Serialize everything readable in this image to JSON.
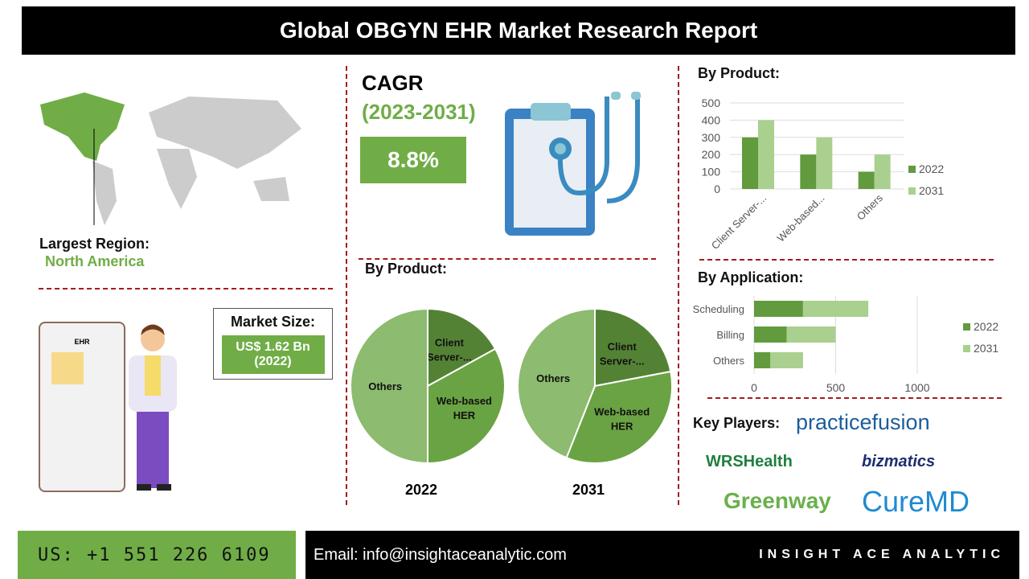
{
  "title": "Global OBGYN EHR Market Research Report",
  "region": {
    "label": "Largest Region:",
    "value": "North America"
  },
  "market_size": {
    "label": "Market Size:",
    "value": "US$ 1.62 Bn",
    "year": "(2022)"
  },
  "cagr": {
    "label": "CAGR",
    "period": "(2023-2031)",
    "value": "8.8%"
  },
  "ehr_label": "EHR",
  "pie_heading": "By Product:",
  "product_heading": "By Product:",
  "application_heading": "By Application:",
  "key_players_label": "Key Players:",
  "key_players": [
    "practicefusion",
    "WRSHealth",
    "bizmatics",
    "Greenway",
    "CureMD"
  ],
  "footer": {
    "phone": "US: +1 551 226 6109",
    "email": "Email: info@insightaceanalytic.com",
    "brand": "INSIGHT ACE ANALYTIC"
  },
  "colors": {
    "c2022": "#629a3e",
    "c2031": "#a9d08e",
    "accent": "#70ad47",
    "divider": "#a51c1c"
  },
  "chart_data": [
    {
      "type": "pie",
      "title": "2022",
      "categories": [
        "Client Server-...",
        "Web-based HER",
        "Others"
      ],
      "values": [
        17,
        33,
        50
      ],
      "colors": [
        "#548235",
        "#6aa343",
        "#8dbb6f"
      ]
    },
    {
      "type": "pie",
      "title": "2031",
      "categories": [
        "Client Server-...",
        "Web-based HER",
        "Others"
      ],
      "values": [
        22,
        34,
        44
      ],
      "colors": [
        "#548235",
        "#6aa343",
        "#8dbb6f"
      ]
    },
    {
      "type": "bar",
      "categories": [
        "Client Server-...",
        "Web-based...",
        "Others"
      ],
      "series": [
        {
          "name": "2022",
          "values": [
            300,
            200,
            100
          ]
        },
        {
          "name": "2031",
          "values": [
            400,
            300,
            200
          ]
        }
      ],
      "ylim": [
        0,
        500
      ],
      "yticks": [
        "0",
        "100",
        "200",
        "300",
        "400",
        "500"
      ],
      "grid": true,
      "legend": "right"
    },
    {
      "type": "bar",
      "orientation": "horizontal",
      "stacked": true,
      "categories": [
        "Scheduling",
        "Billing",
        "Others"
      ],
      "series": [
        {
          "name": "2022",
          "values": [
            300,
            200,
            100
          ]
        },
        {
          "name": "2031",
          "values": [
            400,
            300,
            200
          ]
        }
      ],
      "xlim": [
        0,
        1300
      ],
      "xticks": [
        "0",
        "500",
        "1000"
      ],
      "grid": true,
      "legend": "right"
    }
  ]
}
